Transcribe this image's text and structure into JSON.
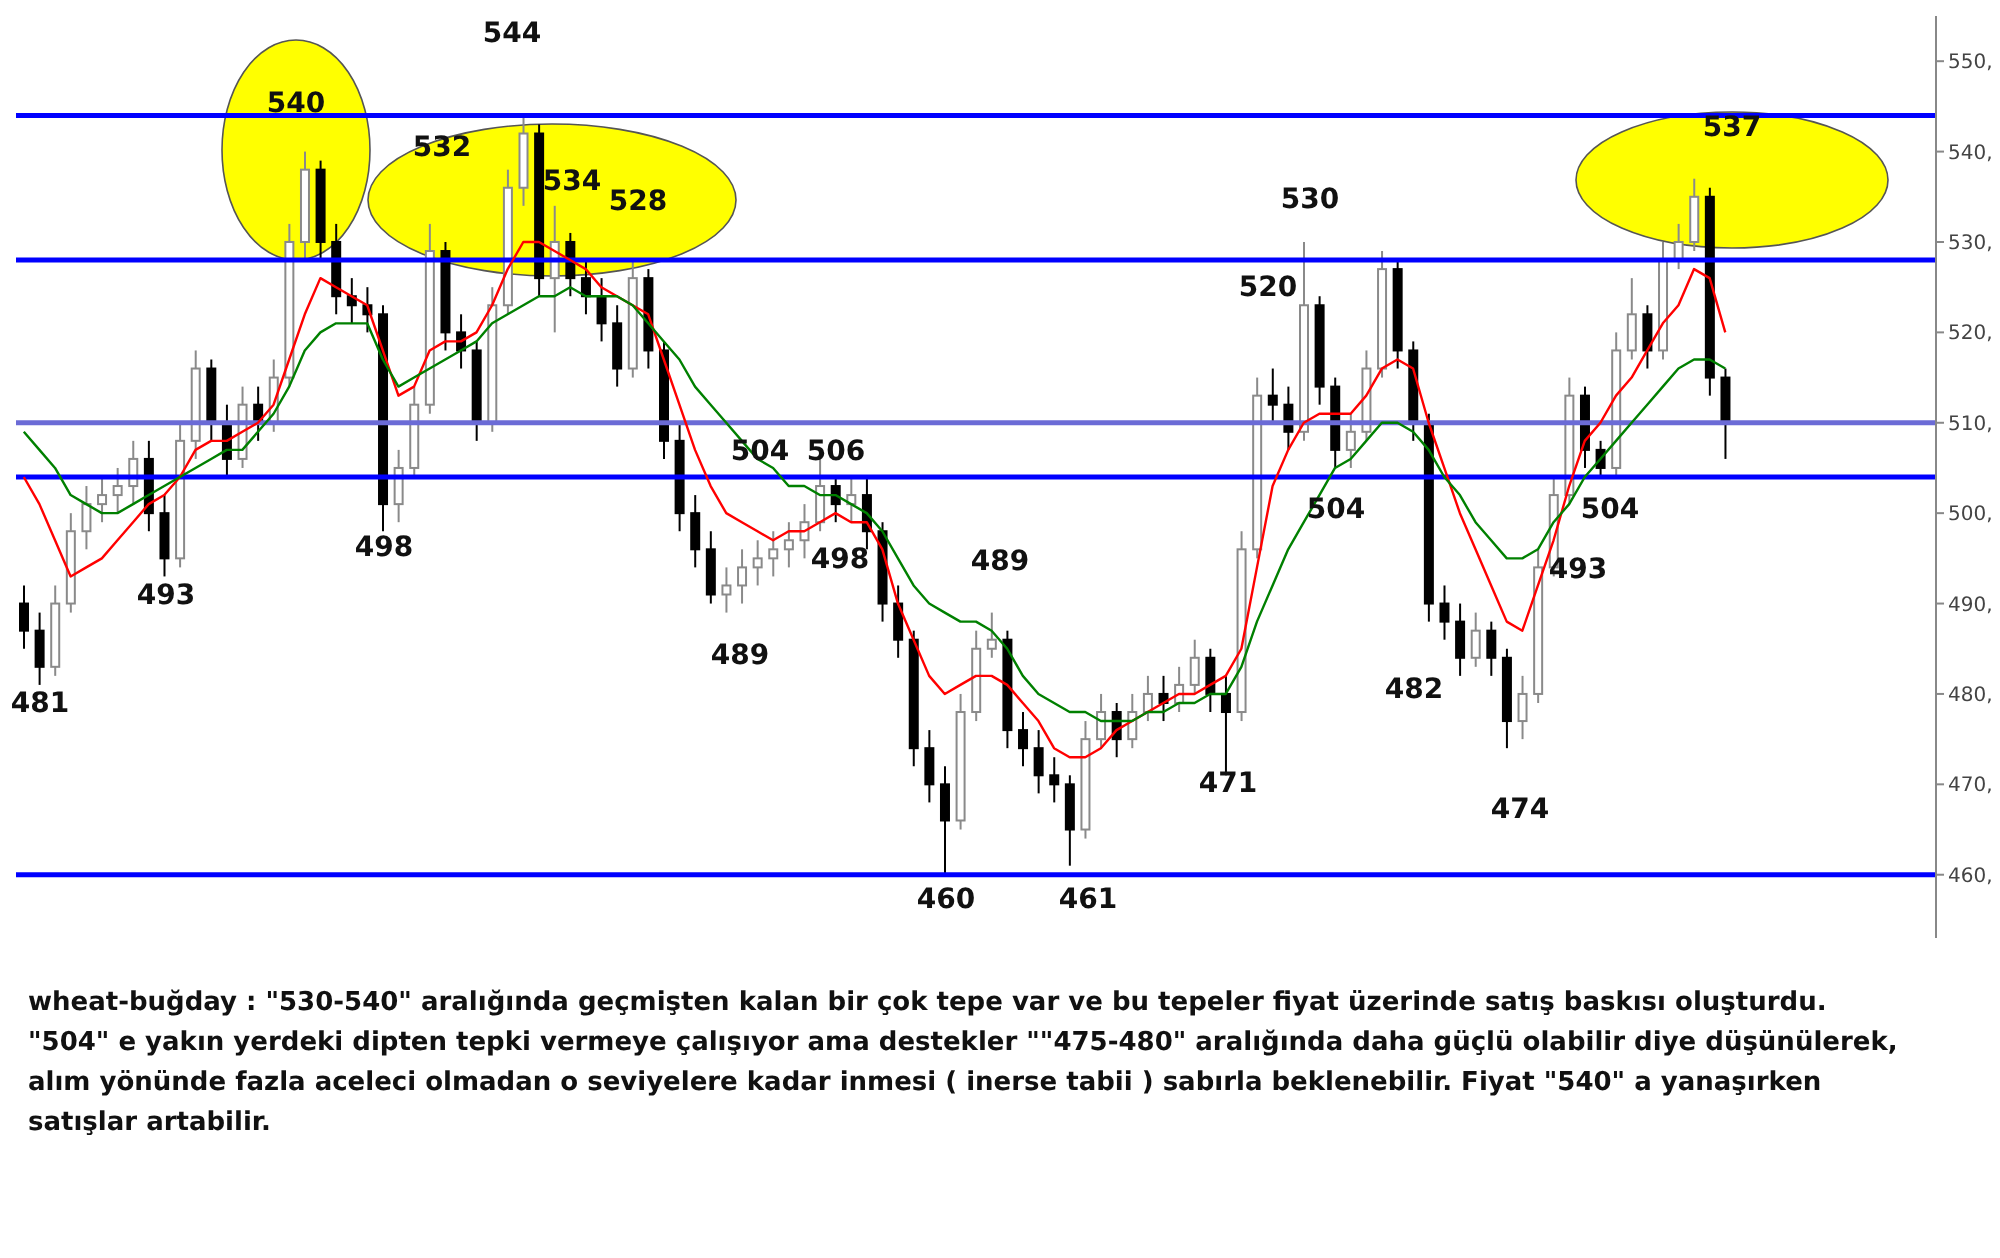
{
  "chart_data": {
    "type": "candlestick",
    "categories": [
      null,
      null,
      null,
      null,
      null,
      null,
      null,
      null,
      null,
      null,
      null,
      null,
      null,
      null,
      null,
      null,
      null,
      null,
      null,
      null,
      null,
      null,
      null,
      null,
      null,
      null,
      null,
      null,
      null,
      null,
      null,
      null,
      null,
      null,
      null,
      null,
      null,
      null,
      null,
      null,
      null,
      null,
      null,
      null,
      null,
      null,
      null,
      null,
      null,
      null,
      null,
      null,
      null,
      null,
      null,
      null,
      null,
      null,
      null,
      null,
      null,
      null,
      null,
      null,
      null,
      null,
      null,
      null,
      null,
      null,
      null,
      null,
      null,
      null,
      null,
      null,
      null,
      null,
      null,
      null,
      null,
      null,
      null,
      null,
      null,
      null,
      null,
      null,
      null,
      null,
      null,
      null,
      null,
      null,
      null,
      null,
      null,
      null,
      null,
      null,
      null,
      null,
      null,
      null,
      null,
      null,
      null,
      null,
      null,
      null,
      null,
      null,
      null,
      null,
      null,
      null,
      null,
      null,
      null,
      null,
      null,
      null,
      null
    ],
    "ohlc": [
      [
        490,
        492,
        485,
        487
      ],
      [
        487,
        489,
        481,
        483
      ],
      [
        483,
        492,
        482,
        490
      ],
      [
        490,
        500,
        489,
        498
      ],
      [
        498,
        503,
        496,
        501
      ],
      [
        501,
        504,
        499,
        502
      ],
      [
        502,
        505,
        500,
        503
      ],
      [
        503,
        508,
        501,
        506
      ],
      [
        506,
        508,
        498,
        500
      ],
      [
        500,
        502,
        493,
        495
      ],
      [
        495,
        510,
        494,
        508
      ],
      [
        508,
        518,
        506,
        516
      ],
      [
        516,
        517,
        508,
        510
      ],
      [
        510,
        512,
        504,
        506
      ],
      [
        506,
        514,
        505,
        512
      ],
      [
        512,
        514,
        508,
        510
      ],
      [
        510,
        517,
        509,
        515
      ],
      [
        515,
        532,
        514,
        530
      ],
      [
        530,
        540,
        528,
        538
      ],
      [
        538,
        539,
        528,
        530
      ],
      [
        530,
        532,
        522,
        524
      ],
      [
        524,
        526,
        521,
        523
      ],
      [
        523,
        525,
        520,
        522
      ],
      [
        522,
        523,
        498,
        501
      ],
      [
        501,
        507,
        499,
        505
      ],
      [
        505,
        514,
        504,
        512
      ],
      [
        512,
        532,
        511,
        529
      ],
      [
        529,
        530,
        518,
        520
      ],
      [
        520,
        522,
        516,
        518
      ],
      [
        518,
        519,
        508,
        510
      ],
      [
        510,
        525,
        509,
        523
      ],
      [
        523,
        538,
        522,
        536
      ],
      [
        536,
        544,
        534,
        542
      ],
      [
        542,
        543,
        524,
        526
      ],
      [
        526,
        534,
        520,
        530
      ],
      [
        530,
        531,
        524,
        526
      ],
      [
        526,
        528,
        522,
        524
      ],
      [
        524,
        526,
        519,
        521
      ],
      [
        521,
        523,
        514,
        516
      ],
      [
        516,
        528,
        515,
        526
      ],
      [
        526,
        527,
        516,
        518
      ],
      [
        518,
        519,
        506,
        508
      ],
      [
        508,
        510,
        498,
        500
      ],
      [
        500,
        502,
        494,
        496
      ],
      [
        496,
        498,
        490,
        491
      ],
      [
        491,
        494,
        489,
        492
      ],
      [
        492,
        496,
        490,
        494
      ],
      [
        494,
        497,
        492,
        495
      ],
      [
        495,
        498,
        493,
        496
      ],
      [
        496,
        499,
        494,
        497
      ],
      [
        497,
        501,
        495,
        499
      ],
      [
        499,
        506,
        498,
        503
      ],
      [
        503,
        504,
        499,
        501
      ],
      [
        501,
        504,
        499,
        502
      ],
      [
        502,
        504,
        496,
        498
      ],
      [
        498,
        499,
        488,
        490
      ],
      [
        490,
        492,
        484,
        486
      ],
      [
        486,
        487,
        472,
        474
      ],
      [
        474,
        476,
        468,
        470
      ],
      [
        470,
        472,
        460,
        466
      ],
      [
        466,
        480,
        465,
        478
      ],
      [
        478,
        487,
        477,
        485
      ],
      [
        485,
        489,
        484,
        486
      ],
      [
        486,
        487,
        474,
        476
      ],
      [
        476,
        478,
        472,
        474
      ],
      [
        474,
        476,
        469,
        471
      ],
      [
        471,
        473,
        468,
        470
      ],
      [
        470,
        471,
        461,
        465
      ],
      [
        465,
        477,
        464,
        475
      ],
      [
        475,
        480,
        474,
        478
      ],
      [
        478,
        479,
        473,
        475
      ],
      [
        475,
        480,
        474,
        478
      ],
      [
        478,
        482,
        477,
        480
      ],
      [
        480,
        482,
        477,
        479
      ],
      [
        479,
        483,
        478,
        481
      ],
      [
        481,
        486,
        480,
        484
      ],
      [
        484,
        485,
        478,
        480
      ],
      [
        480,
        482,
        471,
        478
      ],
      [
        478,
        498,
        477,
        496
      ],
      [
        496,
        515,
        495,
        513
      ],
      [
        513,
        516,
        510,
        512
      ],
      [
        512,
        514,
        507,
        509
      ],
      [
        509,
        530,
        508,
        523
      ],
      [
        523,
        524,
        512,
        514
      ],
      [
        514,
        515,
        505,
        507
      ],
      [
        507,
        511,
        505,
        509
      ],
      [
        509,
        518,
        508,
        516
      ],
      [
        516,
        529,
        515,
        527
      ],
      [
        527,
        528,
        516,
        518
      ],
      [
        518,
        519,
        508,
        510
      ],
      [
        510,
        511,
        488,
        490
      ],
      [
        490,
        492,
        486,
        488
      ],
      [
        488,
        490,
        482,
        484
      ],
      [
        484,
        489,
        483,
        487
      ],
      [
        487,
        488,
        482,
        484
      ],
      [
        484,
        485,
        474,
        477
      ],
      [
        477,
        482,
        475,
        480
      ],
      [
        480,
        496,
        479,
        494
      ],
      [
        494,
        504,
        493,
        502
      ],
      [
        502,
        515,
        501,
        513
      ],
      [
        513,
        514,
        505,
        507
      ],
      [
        507,
        508,
        504,
        505
      ],
      [
        505,
        520,
        504,
        518
      ],
      [
        518,
        526,
        517,
        522
      ],
      [
        522,
        523,
        516,
        518
      ],
      [
        518,
        530,
        517,
        528
      ],
      [
        528,
        532,
        527,
        530
      ],
      [
        530,
        537,
        529,
        535
      ],
      [
        535,
        536,
        513,
        515
      ],
      [
        515,
        516,
        506,
        510
      ],
      null,
      null,
      null,
      null,
      null,
      null,
      null,
      null,
      null,
      null,
      null,
      null,
      null
    ],
    "series": [
      {
        "type": "line",
        "color": "#ff0000",
        "values": [
          504,
          501,
          497,
          493,
          494,
          495,
          497,
          499,
          501,
          502,
          504,
          507,
          508,
          508,
          509,
          510,
          512,
          517,
          522,
          526,
          525,
          524,
          523,
          518,
          513,
          514,
          518,
          519,
          519,
          520,
          523,
          527,
          530,
          530,
          529,
          528,
          527,
          525,
          524,
          523,
          522,
          517,
          512,
          507,
          503,
          500,
          499,
          498,
          497,
          498,
          498,
          499,
          500,
          499,
          499,
          496,
          490,
          486,
          482,
          480,
          481,
          482,
          482,
          481,
          479,
          477,
          474,
          473,
          473,
          474,
          476,
          477,
          478,
          479,
          480,
          480,
          481,
          482,
          485,
          494,
          503,
          507,
          510,
          511,
          511,
          511,
          513,
          516,
          517,
          516,
          510,
          505,
          500,
          496,
          492,
          488,
          487,
          492,
          497,
          503,
          508,
          510,
          513,
          515,
          518,
          521,
          523,
          527,
          526,
          520,
          null,
          null,
          null,
          null,
          null,
          null,
          null,
          null,
          null,
          null,
          null,
          null,
          null
        ]
      },
      {
        "type": "line",
        "color": "#008000",
        "values": [
          509,
          507,
          505,
          502,
          501,
          500,
          500,
          501,
          502,
          503,
          504,
          505,
          506,
          507,
          507,
          509,
          511,
          514,
          518,
          520,
          521,
          521,
          521,
          517,
          514,
          515,
          516,
          517,
          518,
          519,
          521,
          522,
          523,
          524,
          524,
          525,
          524,
          524,
          524,
          523,
          521,
          519,
          517,
          514,
          512,
          510,
          508,
          506,
          505,
          503,
          503,
          502,
          502,
          501,
          500,
          498,
          495,
          492,
          490,
          489,
          488,
          488,
          487,
          485,
          482,
          480,
          479,
          478,
          478,
          477,
          477,
          477,
          478,
          478,
          479,
          479,
          480,
          480,
          483,
          488,
          492,
          496,
          499,
          502,
          505,
          506,
          508,
          510,
          510,
          509,
          507,
          504,
          502,
          499,
          497,
          495,
          495,
          496,
          499,
          501,
          504,
          506,
          508,
          510,
          512,
          514,
          516,
          517,
          517,
          516,
          null,
          null,
          null,
          null,
          null,
          null,
          null,
          null,
          null,
          null,
          null,
          null,
          null
        ]
      }
    ],
    "ylim": [
      453,
      555
    ],
    "yticks": [
      {
        "value": 460,
        "label": "460,"
      },
      {
        "value": 470,
        "label": "470,"
      },
      {
        "value": 480,
        "label": "480,"
      },
      {
        "value": 490,
        "label": "490,"
      },
      {
        "value": 500,
        "label": "500,"
      },
      {
        "value": 510,
        "label": "510,"
      },
      {
        "value": 520,
        "label": "520,"
      },
      {
        "value": 530,
        "label": "530,"
      },
      {
        "value": 540,
        "label": "540,"
      },
      {
        "value": 550,
        "label": "550,"
      }
    ],
    "tick_labels": "y",
    "ref_lines": [
      {
        "axis": "y",
        "value": 544,
        "color": "#0000ff"
      },
      {
        "axis": "y",
        "value": 528,
        "color": "#0000ff"
      },
      {
        "axis": "y",
        "value": 504,
        "color": "#0000ff"
      },
      {
        "axis": "y",
        "value": 460,
        "color": "#0000ff"
      },
      {
        "axis": "y",
        "value": 510,
        "color": "#6b6bd6"
      }
    ],
    "annotations": [
      "540",
      "544",
      "532",
      "534",
      "528",
      "481",
      "493",
      "498",
      "504",
      "506",
      "498",
      "489",
      "489",
      "460",
      "461",
      "471",
      "520",
      "530",
      "504",
      "482",
      "474",
      "493",
      "504",
      "537",
      "wheat-buğday : \"530-540\" aralığında geçmişten kalan bir çok tepe var ve bu tepeler fiyat üzerinde satış baskısı oluşturdu. \"504\" e yakın yerdeki dipten tepki vermeye çalışıyor ama destekler \"\"475-480\" aralığında daha güçlü olabilir diye düşünülerek, alım yönünde fazla aceleci olmadan o seviyelere kadar inmesi ( inerse tabii ) sabırla beklenebilir. Fiyat \"540\" a yanaşırken satışlar artabilir."
    ]
  }
}
